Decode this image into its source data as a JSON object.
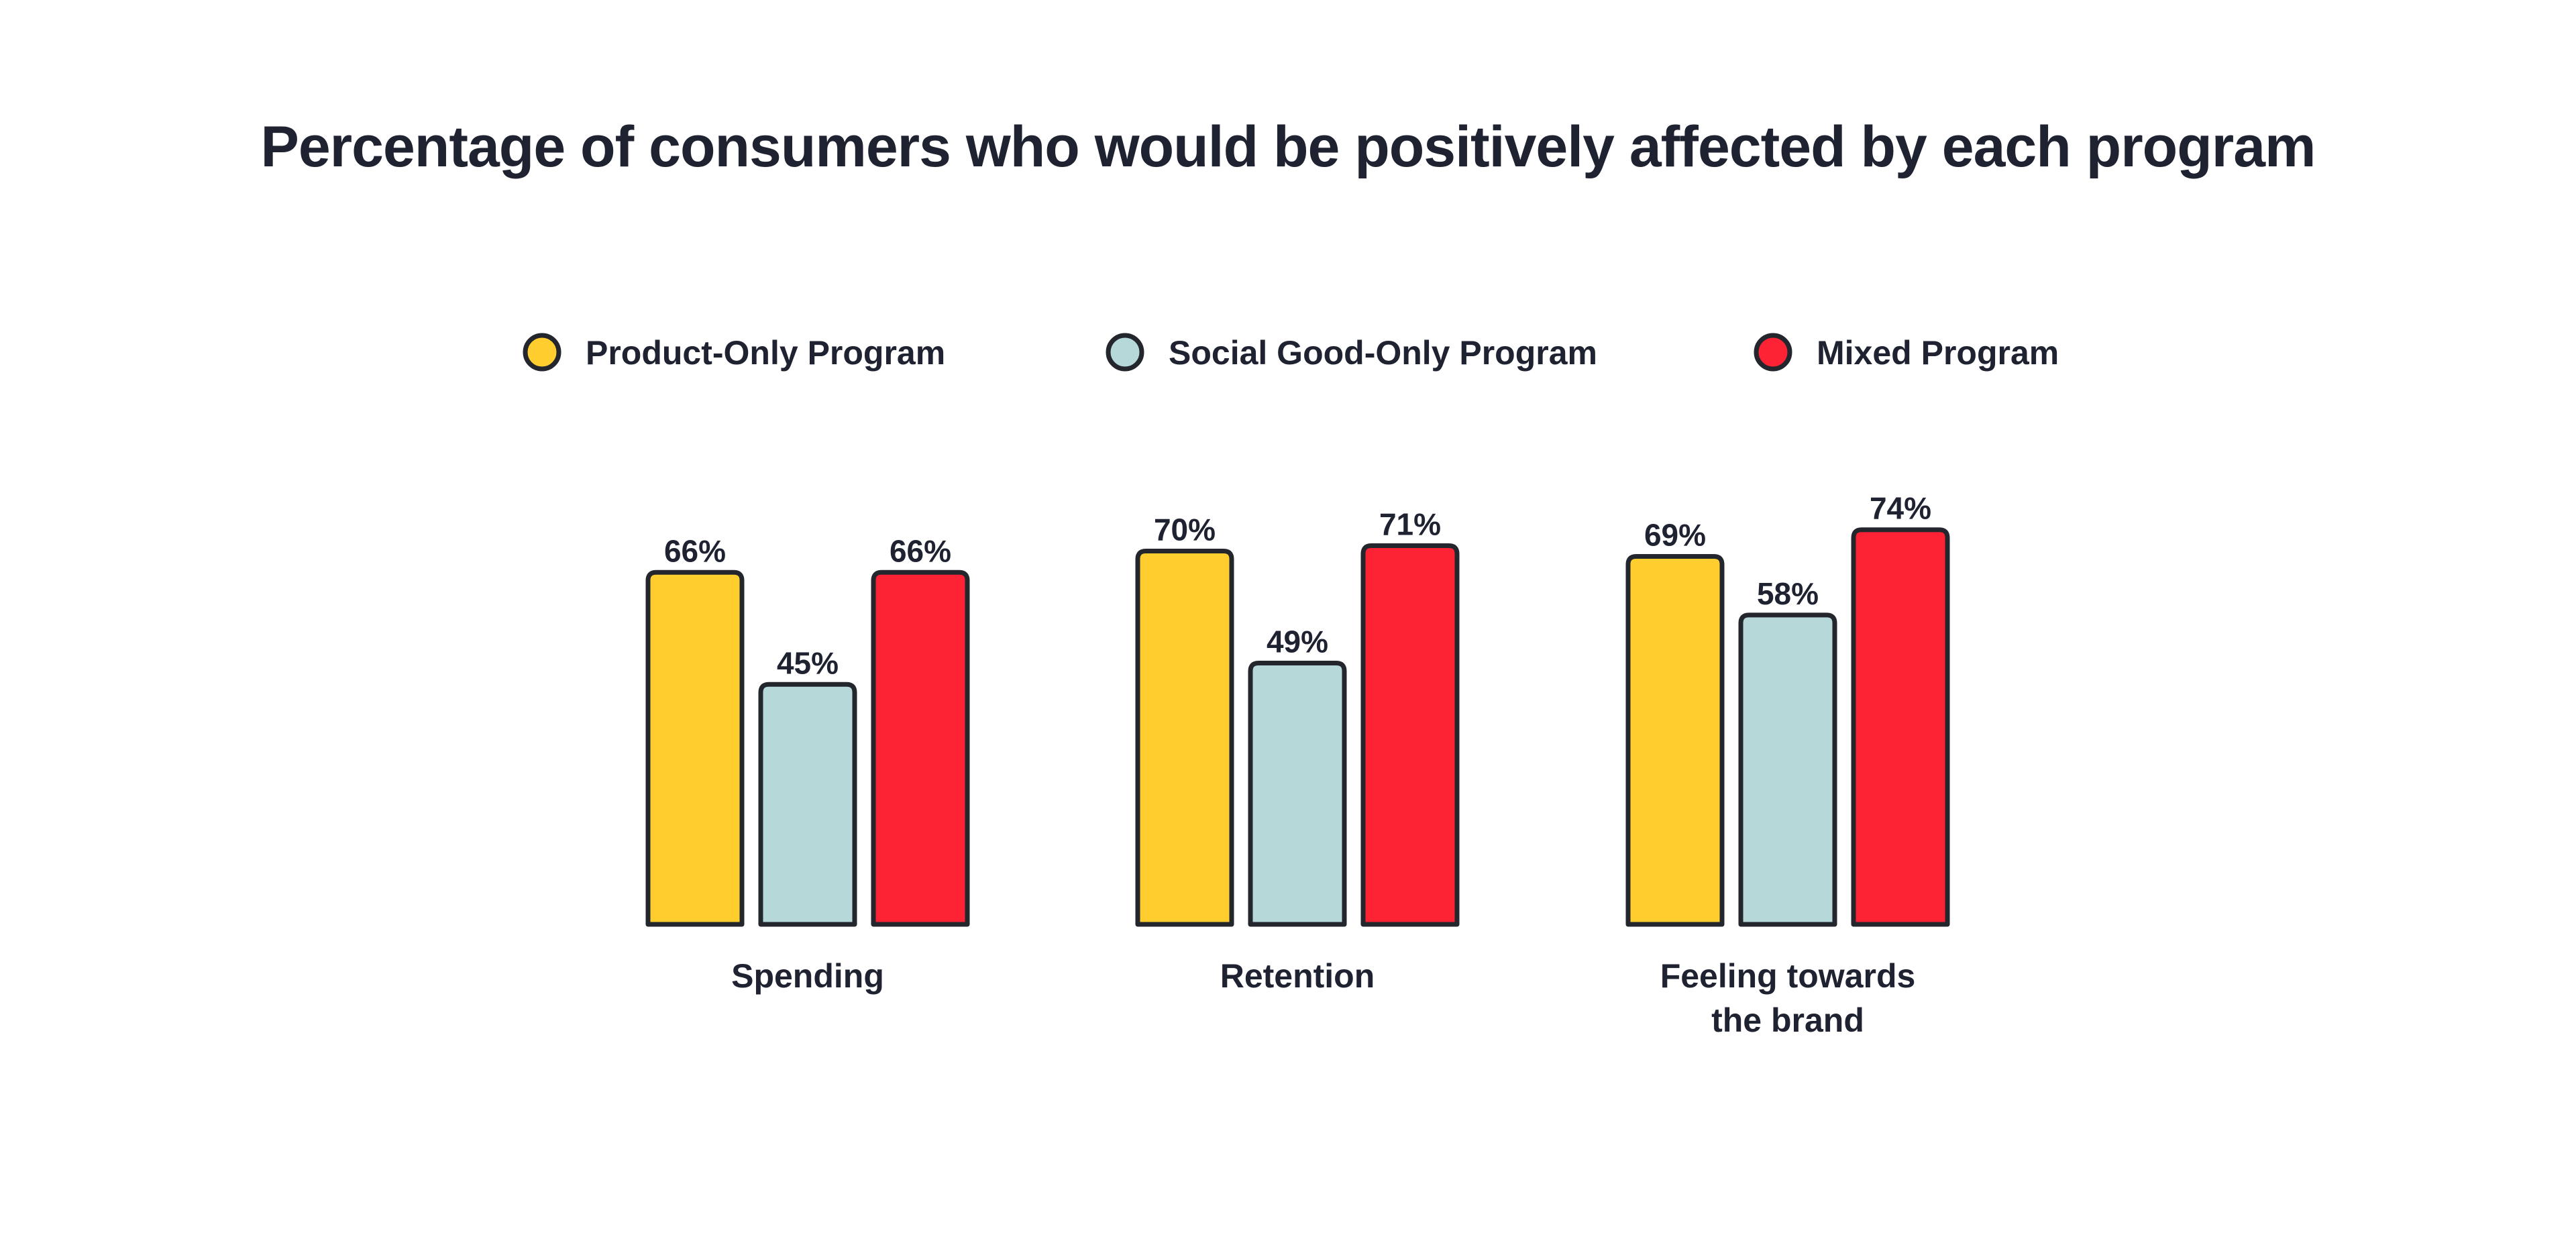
{
  "chart_data": {
    "type": "bar",
    "title": "Percentage of consumers who would be positively affected by each program",
    "categories": [
      [
        "Spending"
      ],
      [
        "Retention"
      ],
      [
        "Feeling towards",
        "the brand"
      ]
    ],
    "series": [
      {
        "name": "Product-Only Program",
        "color": "#ffcd2e",
        "values": [
          66,
          70,
          69
        ],
        "labels": [
          "66%",
          "70%",
          "69%"
        ]
      },
      {
        "name": "Social Good-Only Program",
        "color": "#b7d8d8",
        "values": [
          45,
          49,
          58
        ],
        "labels": [
          "45%",
          "49%",
          "58%"
        ]
      },
      {
        "name": "Mixed Program",
        "color": "#fd2234",
        "values": [
          66,
          71,
          74
        ],
        "labels": [
          "66%",
          "71%",
          "74%"
        ]
      }
    ],
    "ylim": [
      0,
      100
    ],
    "xlabel": "",
    "ylabel": "",
    "grid": false,
    "legend_position": "top"
  }
}
